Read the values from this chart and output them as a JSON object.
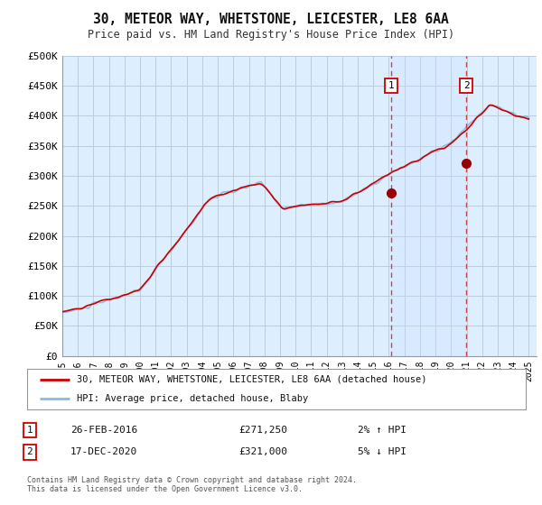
{
  "title": "30, METEOR WAY, WHETSTONE, LEICESTER, LE8 6AA",
  "subtitle": "Price paid vs. HM Land Registry's House Price Index (HPI)",
  "ylim": [
    0,
    500000
  ],
  "xlim_start": 1995.0,
  "xlim_end": 2025.5,
  "yticks": [
    0,
    50000,
    100000,
    150000,
    200000,
    250000,
    300000,
    350000,
    400000,
    450000,
    500000
  ],
  "ytick_labels": [
    "£0",
    "£50K",
    "£100K",
    "£150K",
    "£200K",
    "£250K",
    "£300K",
    "£350K",
    "£400K",
    "£450K",
    "£500K"
  ],
  "background_color": "#ffffff",
  "plot_bg_color": "#ddeeff",
  "grid_color": "#bbccdd",
  "line1_color": "#cc0000",
  "line2_color": "#88bbdd",
  "vline1_x": 2016.15,
  "vline2_x": 2020.97,
  "marker1_label": "1",
  "marker2_label": "2",
  "sale1_x": 2016.15,
  "sale1_y": 271250,
  "sale2_x": 2020.97,
  "sale2_y": 321000,
  "legend_line1": "30, METEOR WAY, WHETSTONE, LEICESTER, LE8 6AA (detached house)",
  "legend_line2": "HPI: Average price, detached house, Blaby",
  "annot1_num": "1",
  "annot1_date": "26-FEB-2016",
  "annot1_price": "£271,250",
  "annot1_hpi": "2% ↑ HPI",
  "annot2_num": "2",
  "annot2_date": "17-DEC-2020",
  "annot2_price": "£321,000",
  "annot2_hpi": "5% ↓ HPI",
  "copyright": "Contains HM Land Registry data © Crown copyright and database right 2024.\nThis data is licensed under the Open Government Licence v3.0."
}
